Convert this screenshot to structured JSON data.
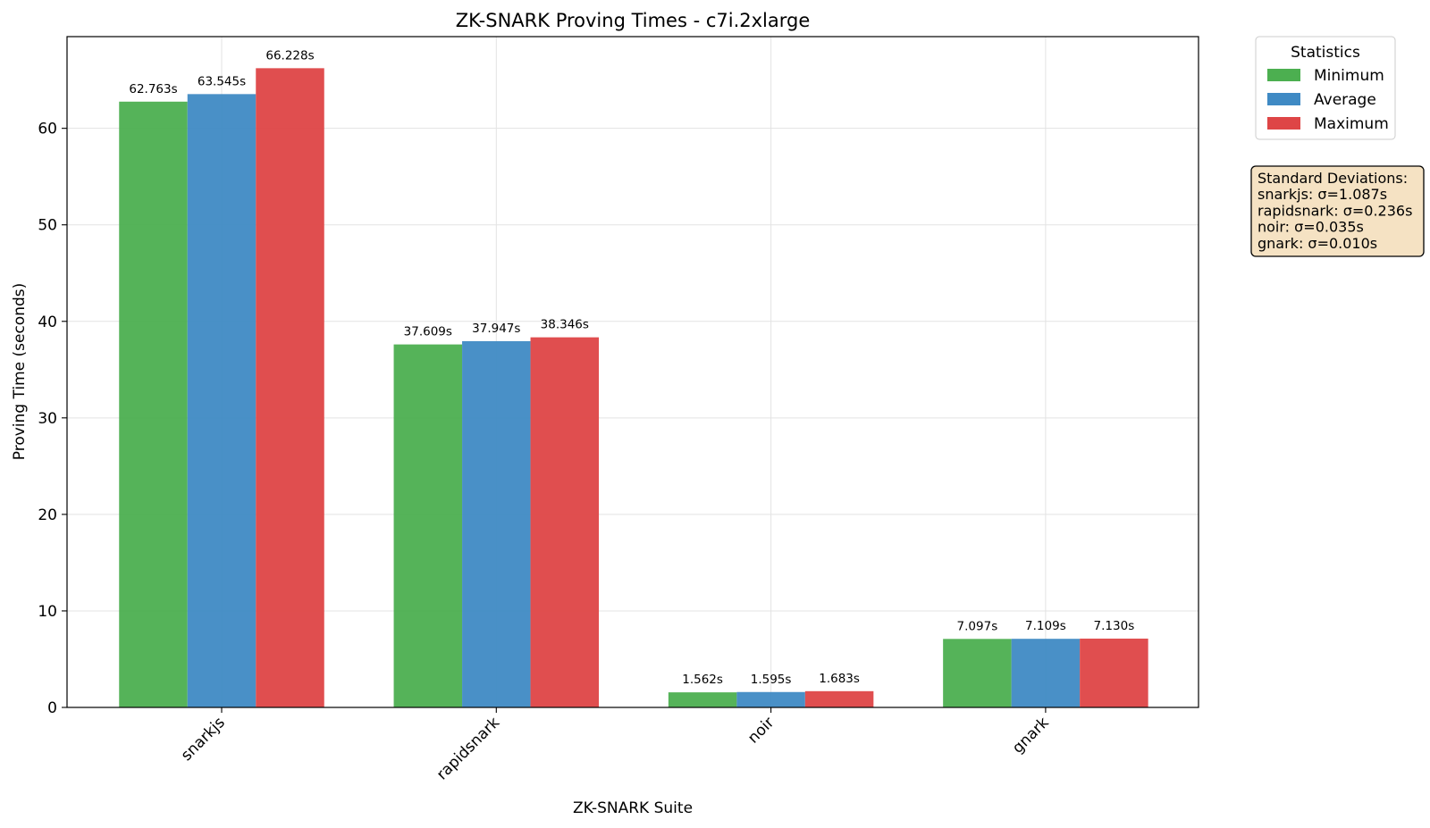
{
  "chart_data": {
    "type": "bar",
    "title": "ZK-SNARK Proving Times - c7i.2xlarge",
    "xlabel": "ZK-SNARK Suite",
    "ylabel": "Proving Time (seconds)",
    "ylim": [
      0,
      69.5
    ],
    "yticks": [
      0,
      10,
      20,
      30,
      40,
      50,
      60
    ],
    "grid": true,
    "categories": [
      "snarkjs",
      "rapidsnark",
      "noir",
      "gnark"
    ],
    "series": [
      {
        "name": "Minimum",
        "color": "#4caf50",
        "values": [
          62.763,
          37.609,
          1.562,
          7.097
        ],
        "labels": [
          "62.763s",
          "37.609s",
          "1.562s",
          "7.097s"
        ]
      },
      {
        "name": "Average",
        "color": "#3f8ac4",
        "values": [
          63.545,
          37.947,
          1.595,
          7.109
        ],
        "labels": [
          "63.545s",
          "37.947s",
          "1.595s",
          "7.109s"
        ]
      },
      {
        "name": "Maximum",
        "color": "#de4546",
        "values": [
          66.228,
          38.346,
          1.683,
          7.13
        ],
        "labels": [
          "66.228s",
          "38.346s",
          "1.683s",
          "7.130s"
        ]
      }
    ],
    "legend": {
      "title": "Statistics",
      "placement": "outside-top-right"
    },
    "annotation": {
      "background": "#f5e2c3",
      "lines": [
        "Standard Deviations:",
        "snarkjs: σ=1.087s",
        "rapidsnark: σ=0.236s",
        "noir: σ=0.035s",
        "gnark: σ=0.010s"
      ]
    }
  }
}
